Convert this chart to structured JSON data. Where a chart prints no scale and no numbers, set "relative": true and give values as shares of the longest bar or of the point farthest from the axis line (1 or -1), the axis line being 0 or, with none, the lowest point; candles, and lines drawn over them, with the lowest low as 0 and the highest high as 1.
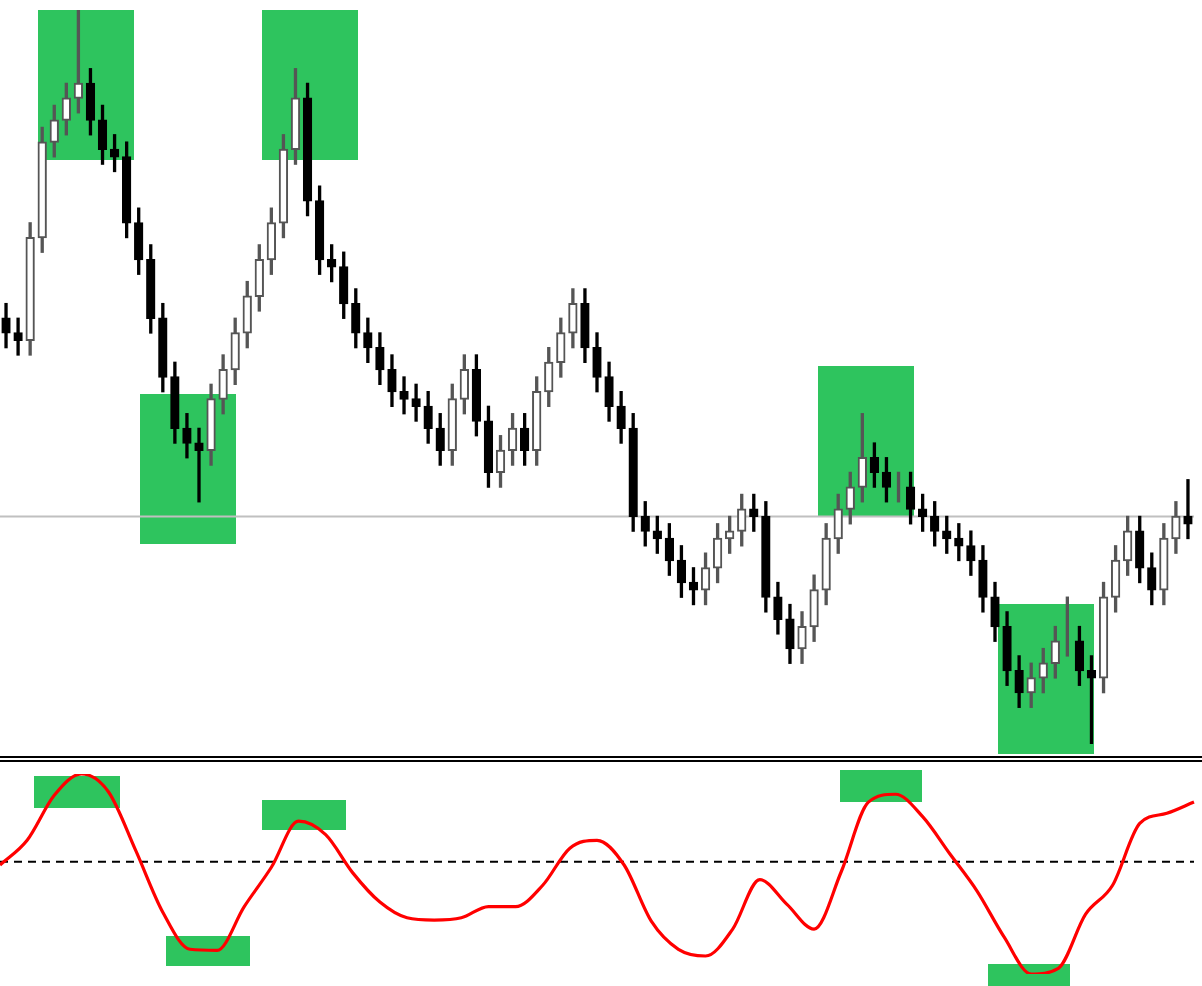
{
  "chart_data": [
    {
      "type": "candlestick",
      "relative": true,
      "categories": [
        null,
        null,
        null,
        null,
        null,
        null,
        null,
        null,
        null,
        null,
        null,
        null,
        null,
        null,
        null,
        null,
        null,
        null,
        null,
        null,
        null,
        null,
        null,
        null,
        null,
        null,
        null,
        null,
        null,
        null,
        null,
        null,
        null,
        null,
        null,
        null,
        null,
        null,
        null,
        null,
        null,
        null,
        null,
        null,
        null,
        null,
        null,
        null,
        null,
        null,
        null,
        null,
        null,
        null,
        null,
        null,
        null,
        null,
        null,
        null,
        null,
        null,
        null,
        null,
        null,
        null,
        null,
        null,
        null,
        null,
        null,
        null,
        null,
        null,
        null,
        null,
        null,
        null,
        null,
        null,
        null,
        null,
        null,
        null,
        null,
        null,
        null,
        null,
        null,
        null,
        null,
        null,
        null,
        null,
        null,
        null,
        null,
        null,
        null
      ],
      "ohlc": [
        [
          0.58,
          0.6,
          0.54,
          0.56
        ],
        [
          0.56,
          0.58,
          0.53,
          0.55
        ],
        [
          0.55,
          0.71,
          0.53,
          0.69
        ],
        [
          0.69,
          0.84,
          0.67,
          0.82
        ],
        [
          0.82,
          0.87,
          0.8,
          0.85
        ],
        [
          0.85,
          0.9,
          0.83,
          0.88
        ],
        [
          0.88,
          1,
          0.86,
          0.9
        ],
        [
          0.9,
          0.92,
          0.83,
          0.85
        ],
        [
          0.85,
          0.87,
          0.79,
          0.81
        ],
        [
          0.81,
          0.83,
          0.78,
          0.8
        ],
        [
          0.8,
          0.82,
          0.69,
          0.71
        ],
        [
          0.71,
          0.73,
          0.64,
          0.66
        ],
        [
          0.66,
          0.68,
          0.56,
          0.58
        ],
        [
          0.58,
          0.6,
          0.48,
          0.5
        ],
        [
          0.5,
          0.52,
          0.41,
          0.43
        ],
        [
          0.43,
          0.45,
          0.39,
          0.41
        ],
        [
          0.41,
          0.43,
          0.33,
          0.4
        ],
        [
          0.4,
          0.49,
          0.38,
          0.47
        ],
        [
          0.47,
          0.53,
          0.45,
          0.51
        ],
        [
          0.51,
          0.58,
          0.49,
          0.56
        ],
        [
          0.56,
          0.63,
          0.54,
          0.61
        ],
        [
          0.61,
          0.68,
          0.59,
          0.66
        ],
        [
          0.66,
          0.73,
          0.64,
          0.71
        ],
        [
          0.71,
          0.83,
          0.69,
          0.81
        ],
        [
          0.81,
          0.92,
          0.79,
          0.88
        ],
        [
          0.88,
          0.9,
          0.72,
          0.74
        ],
        [
          0.74,
          0.76,
          0.64,
          0.66
        ],
        [
          0.66,
          0.68,
          0.63,
          0.65
        ],
        [
          0.65,
          0.67,
          0.58,
          0.6
        ],
        [
          0.6,
          0.62,
          0.54,
          0.56
        ],
        [
          0.56,
          0.58,
          0.52,
          0.54
        ],
        [
          0.54,
          0.56,
          0.49,
          0.51
        ],
        [
          0.51,
          0.53,
          0.46,
          0.48
        ],
        [
          0.48,
          0.5,
          0.45,
          0.47
        ],
        [
          0.47,
          0.49,
          0.44,
          0.46
        ],
        [
          0.46,
          0.48,
          0.41,
          0.43
        ],
        [
          0.43,
          0.45,
          0.38,
          0.4
        ],
        [
          0.4,
          0.49,
          0.38,
          0.47
        ],
        [
          0.47,
          0.53,
          0.45,
          0.51
        ],
        [
          0.51,
          0.53,
          0.42,
          0.44
        ],
        [
          0.44,
          0.46,
          0.35,
          0.37
        ],
        [
          0.37,
          0.42,
          0.35,
          0.4
        ],
        [
          0.4,
          0.45,
          0.38,
          0.43
        ],
        [
          0.43,
          0.45,
          0.38,
          0.4
        ],
        [
          0.4,
          0.5,
          0.38,
          0.48
        ],
        [
          0.48,
          0.54,
          0.46,
          0.52
        ],
        [
          0.52,
          0.58,
          0.5,
          0.56
        ],
        [
          0.56,
          0.62,
          0.54,
          0.6
        ],
        [
          0.6,
          0.62,
          0.52,
          0.54
        ],
        [
          0.54,
          0.56,
          0.48,
          0.5
        ],
        [
          0.5,
          0.52,
          0.44,
          0.46
        ],
        [
          0.46,
          0.48,
          0.41,
          0.43
        ],
        [
          0.43,
          0.45,
          0.29,
          0.31
        ],
        [
          0.31,
          0.33,
          0.27,
          0.29
        ],
        [
          0.29,
          0.31,
          0.26,
          0.28
        ],
        [
          0.28,
          0.3,
          0.23,
          0.25
        ],
        [
          0.25,
          0.27,
          0.2,
          0.22
        ],
        [
          0.22,
          0.24,
          0.19,
          0.21
        ],
        [
          0.21,
          0.26,
          0.19,
          0.24
        ],
        [
          0.24,
          0.3,
          0.22,
          0.28
        ],
        [
          0.28,
          0.31,
          0.26,
          0.29
        ],
        [
          0.29,
          0.34,
          0.27,
          0.32
        ],
        [
          0.32,
          0.34,
          0.29,
          0.31
        ],
        [
          0.31,
          0.33,
          0.18,
          0.2
        ],
        [
          0.2,
          0.22,
          0.15,
          0.17
        ],
        [
          0.17,
          0.19,
          0.11,
          0.13
        ],
        [
          0.13,
          0.18,
          0.11,
          0.16
        ],
        [
          0.16,
          0.23,
          0.14,
          0.21
        ],
        [
          0.21,
          0.3,
          0.19,
          0.28
        ],
        [
          0.28,
          0.34,
          0.26,
          0.32
        ],
        [
          0.32,
          0.37,
          0.3,
          0.35
        ],
        [
          0.35,
          0.45,
          0.33,
          0.39
        ],
        [
          0.39,
          0.41,
          0.35,
          0.37
        ],
        [
          0.37,
          0.39,
          0.33,
          0.35
        ],
        [
          0.35,
          0.37,
          0.33,
          0.35
        ],
        [
          0.35,
          0.37,
          0.3,
          0.32
        ],
        [
          0.32,
          0.34,
          0.29,
          0.31
        ],
        [
          0.31,
          0.33,
          0.27,
          0.29
        ],
        [
          0.29,
          0.31,
          0.26,
          0.28
        ],
        [
          0.28,
          0.3,
          0.25,
          0.27
        ],
        [
          0.27,
          0.29,
          0.23,
          0.25
        ],
        [
          0.25,
          0.27,
          0.18,
          0.2
        ],
        [
          0.2,
          0.22,
          0.14,
          0.16
        ],
        [
          0.16,
          0.18,
          0.08,
          0.1
        ],
        [
          0.1,
          0.12,
          0.05,
          0.07
        ],
        [
          0.07,
          0.11,
          0.05,
          0.09
        ],
        [
          0.09,
          0.13,
          0.07,
          0.11
        ],
        [
          0.11,
          0.16,
          0.09,
          0.14
        ],
        [
          0.14,
          0.2,
          0.12,
          0.14
        ],
        [
          0.14,
          0.16,
          0.08,
          0.1
        ],
        [
          0.1,
          0.12,
          0,
          0.09
        ],
        [
          0.09,
          0.22,
          0.07,
          0.2
        ],
        [
          0.2,
          0.27,
          0.18,
          0.25
        ],
        [
          0.25,
          0.31,
          0.23,
          0.29
        ],
        [
          0.29,
          0.31,
          0.22,
          0.24
        ],
        [
          0.24,
          0.26,
          0.19,
          0.21
        ],
        [
          0.21,
          0.3,
          0.19,
          0.28
        ],
        [
          0.28,
          0.33,
          0.26,
          0.31
        ],
        [
          0.31,
          0.36,
          0.28,
          0.3
        ]
      ],
      "ref_lines": [
        {
          "axis": "y",
          "value": 0.31,
          "color": "#c0c0c0",
          "line_style": "solid"
        }
      ]
    },
    {
      "type": "line",
      "relative": true,
      "marker": "none",
      "line_style": "solid",
      "categories": [
        null,
        null,
        null,
        null,
        null,
        null,
        null,
        null,
        null,
        null,
        null,
        null,
        null,
        null,
        null,
        null,
        null,
        null,
        null,
        null,
        null,
        null,
        null,
        null,
        null,
        null,
        null,
        null,
        null,
        null,
        null,
        null,
        null,
        null,
        null,
        null,
        null,
        null,
        null,
        null,
        null,
        null,
        null,
        null,
        null
      ],
      "series": [
        {
          "color": "#ff0000",
          "values": [
            -0.03,
            0.19,
            0.59,
            0.78,
            0.62,
            0.1,
            -0.45,
            -0.78,
            -0.79,
            -0.4,
            -0.05,
            0.36,
            0.24,
            -0.1,
            -0.36,
            -0.5,
            -0.52,
            -0.5,
            -0.4,
            -0.4,
            -0.21,
            0.12,
            0.19,
            -0.03,
            -0.53,
            -0.78,
            -0.84,
            -0.6,
            -0.16,
            -0.38,
            -0.6,
            -0.09,
            0.53,
            0.6,
            0.4,
            0.07,
            -0.26,
            -0.67,
            -1,
            -0.95,
            -0.47,
            -0.21,
            0.34,
            0.43,
            0.53
          ]
        }
      ],
      "ref_lines": [
        {
          "axis": "y",
          "value": 0,
          "color": "#000000",
          "line_style": "dashed"
        }
      ]
    }
  ]
}
